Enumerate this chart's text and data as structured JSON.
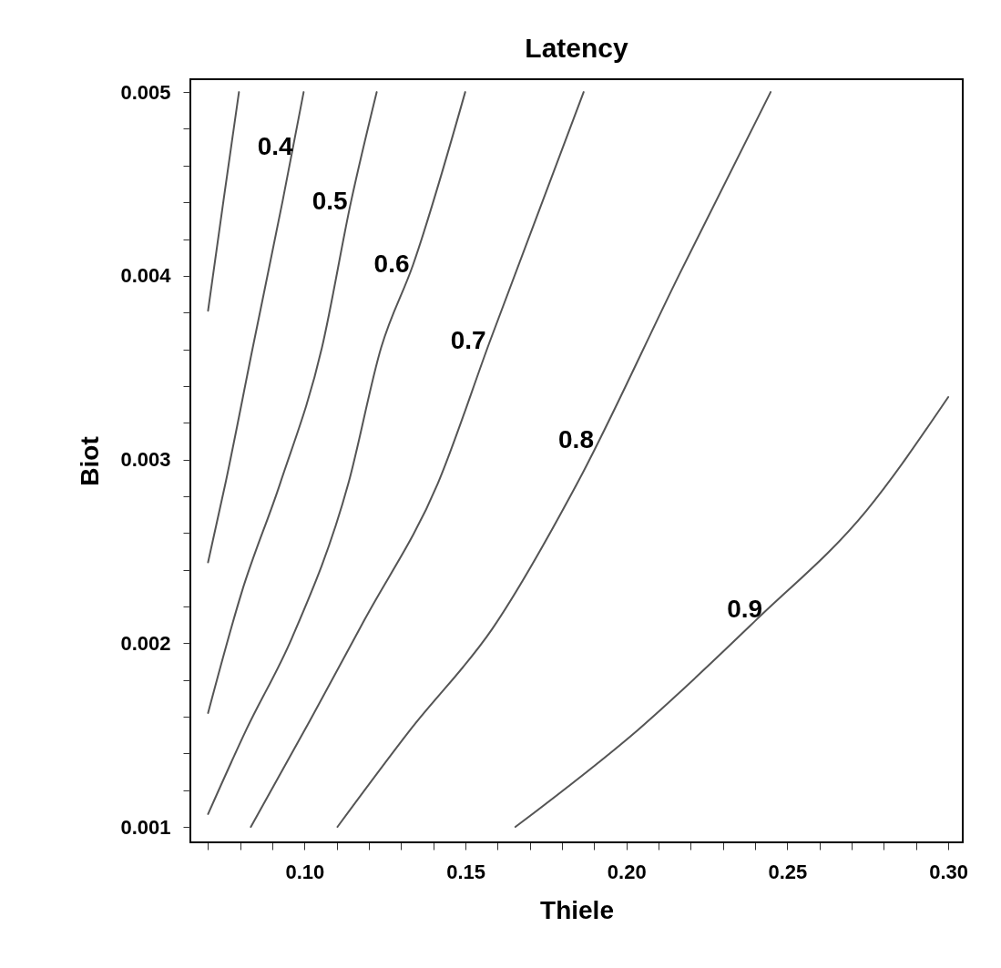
{
  "chart_data": {
    "type": "line",
    "title": "Latency",
    "xlabel": "Thiele",
    "ylabel": "Biot",
    "xlim": [
      0.0645,
      0.3045
    ],
    "ylim": [
      0.000916,
      0.00507
    ],
    "xticks": [
      {
        "value": 0.07,
        "label": null
      },
      {
        "value": 0.08,
        "label": null
      },
      {
        "value": 0.09,
        "label": null
      },
      {
        "value": 0.1,
        "label": "0.10"
      },
      {
        "value": 0.11,
        "label": null
      },
      {
        "value": 0.12,
        "label": null
      },
      {
        "value": 0.13,
        "label": null
      },
      {
        "value": 0.14,
        "label": null
      },
      {
        "value": 0.15,
        "label": "0.15"
      },
      {
        "value": 0.16,
        "label": null
      },
      {
        "value": 0.17,
        "label": null
      },
      {
        "value": 0.18,
        "label": null
      },
      {
        "value": 0.19,
        "label": null
      },
      {
        "value": 0.2,
        "label": "0.20"
      },
      {
        "value": 0.21,
        "label": null
      },
      {
        "value": 0.22,
        "label": null
      },
      {
        "value": 0.23,
        "label": null
      },
      {
        "value": 0.24,
        "label": null
      },
      {
        "value": 0.25,
        "label": "0.25"
      },
      {
        "value": 0.26,
        "label": null
      },
      {
        "value": 0.27,
        "label": null
      },
      {
        "value": 0.28,
        "label": null
      },
      {
        "value": 0.29,
        "label": null
      },
      {
        "value": 0.3,
        "label": "0.30"
      }
    ],
    "yticks": [
      0.001,
      {
        "value": 0.0012,
        "label": null
      },
      {
        "value": 0.0014,
        "label": null
      },
      {
        "value": 0.0016,
        "label": null
      },
      {
        "value": 0.0018,
        "label": null
      },
      0.002,
      {
        "value": 0.0022,
        "label": null
      },
      {
        "value": 0.0024,
        "label": null
      },
      {
        "value": 0.0026,
        "label": null
      },
      {
        "value": 0.0028,
        "label": null
      },
      0.003,
      {
        "value": 0.0032,
        "label": null
      },
      {
        "value": 0.0034,
        "label": null
      },
      {
        "value": 0.0036,
        "label": null
      },
      {
        "value": 0.0038,
        "label": null
      },
      0.004,
      {
        "value": 0.0042,
        "label": null
      },
      {
        "value": 0.0044,
        "label": null
      },
      {
        "value": 0.0046,
        "label": null
      },
      {
        "value": 0.0048,
        "label": null
      },
      0.005
    ],
    "grid": false,
    "legend": false,
    "marker": "none",
    "line_style": "solid",
    "series": [
      {
        "color": "#555555",
        "x": [
          0.07,
          0.0748,
          0.0796
        ],
        "values": [
          0.00381,
          0.00441,
          0.005
        ]
      },
      {
        "color": "#555555",
        "x": [
          0.07,
          0.0754,
          0.0839,
          0.0932,
          0.0997
        ],
        "values": [
          0.00244,
          0.00287,
          0.00361,
          0.00441,
          0.005
        ]
      },
      {
        "color": "#555555",
        "x": [
          0.07,
          0.0805,
          0.0924,
          0.1054,
          0.1145,
          0.1224
        ],
        "values": [
          0.00162,
          0.00228,
          0.00287,
          0.00361,
          0.00441,
          0.005
        ]
      },
      {
        "color": "#555555",
        "x": [
          0.07,
          0.0819,
          0.0961,
          0.1136,
          0.1238,
          0.1337,
          0.1499
        ],
        "values": [
          0.00107,
          0.00153,
          0.00203,
          0.00287,
          0.00361,
          0.00406,
          0.005
        ]
      },
      {
        "color": "#555555",
        "x": [
          0.0833,
          0.1017,
          0.1187,
          0.1414,
          0.1575,
          0.1867
        ],
        "values": [
          0.001,
          0.00158,
          0.00213,
          0.00287,
          0.00364,
          0.005
        ]
      },
      {
        "color": "#555555",
        "x": [
          0.1102,
          0.1329,
          0.1584,
          0.1847,
          0.2165,
          0.2448
        ],
        "values": [
          0.001,
          0.00153,
          0.00208,
          0.00287,
          0.00401,
          0.005
        ]
      },
      {
        "color": "#555555",
        "x": [
          0.1655,
          0.2037,
          0.2405,
          0.2745,
          0.3
        ],
        "values": [
          0.001,
          0.00153,
          0.00213,
          0.00272,
          0.00334
        ]
      }
    ],
    "annotations": [
      {
        "text": "0.4",
        "x": 0.0975,
        "y": 0.0047
      },
      {
        "text": "0.5",
        "x": 0.1145,
        "y": 0.0044
      },
      {
        "text": "0.6",
        "x": 0.1337,
        "y": 0.00406
      },
      {
        "text": "0.7",
        "x": 0.1575,
        "y": 0.00364
      },
      {
        "text": "0.8",
        "x": 0.191,
        "y": 0.0031
      },
      {
        "text": "0.9",
        "x": 0.2434,
        "y": 0.00218
      }
    ]
  }
}
